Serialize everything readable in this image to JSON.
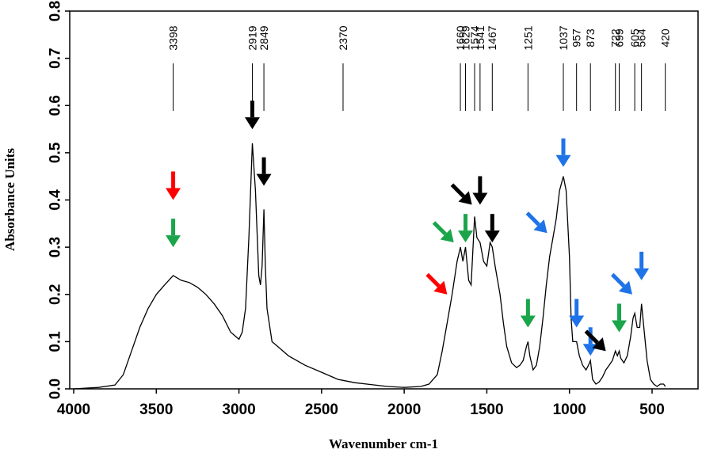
{
  "chart_data": {
    "type": "line",
    "xlabel": "Wavenumber cm-1",
    "ylabel": "Absorbance Units",
    "xlim": [
      4000,
      400
    ],
    "ylim": [
      0,
      0.8
    ],
    "x_ticks": [
      "4000",
      "3500",
      "3000",
      "2500",
      "2000",
      "1500",
      "1000",
      "500"
    ],
    "y_ticks": [
      "0.0",
      "0.1",
      "0.2",
      "0.3",
      "0.4",
      "0.5",
      "0.6",
      "0.7",
      "0.8"
    ],
    "grid": false,
    "series": [
      {
        "x": [
          4000,
          3850,
          3750,
          3700,
          3650,
          3600,
          3550,
          3500,
          3450,
          3398,
          3350,
          3300,
          3250,
          3200,
          3150,
          3100,
          3050,
          3000,
          2980,
          2960,
          2940,
          2919,
          2900,
          2880,
          2870,
          2860,
          2849,
          2840,
          2830,
          2800,
          2750,
          2700,
          2600,
          2500,
          2400,
          2370,
          2300,
          2200,
          2100,
          2000,
          1900,
          1850,
          1800,
          1770,
          1740,
          1710,
          1680,
          1660,
          1645,
          1629,
          1610,
          1595,
          1574,
          1560,
          1541,
          1520,
          1500,
          1480,
          1467,
          1450,
          1420,
          1400,
          1380,
          1350,
          1320,
          1300,
          1280,
          1260,
          1251,
          1240,
          1220,
          1200,
          1180,
          1160,
          1140,
          1120,
          1100,
          1080,
          1060,
          1037,
          1020,
          1000,
          990,
          980,
          970,
          957,
          940,
          920,
          900,
          885,
          873,
          860,
          840,
          820,
          800,
          780,
          760,
          740,
          722,
          710,
          699,
          690,
          670,
          650,
          630,
          615,
          605,
          590,
          575,
          564,
          550,
          530,
          510,
          490,
          470,
          450,
          430,
          420
        ],
        "values": [
          0.0,
          0.003,
          0.008,
          0.03,
          0.08,
          0.13,
          0.17,
          0.2,
          0.22,
          0.24,
          0.23,
          0.225,
          0.215,
          0.2,
          0.18,
          0.155,
          0.12,
          0.105,
          0.12,
          0.17,
          0.32,
          0.52,
          0.42,
          0.24,
          0.22,
          0.26,
          0.38,
          0.26,
          0.17,
          0.1,
          0.085,
          0.07,
          0.05,
          0.035,
          0.02,
          0.018,
          0.013,
          0.009,
          0.005,
          0.003,
          0.005,
          0.01,
          0.03,
          0.08,
          0.14,
          0.2,
          0.27,
          0.3,
          0.27,
          0.3,
          0.23,
          0.22,
          0.365,
          0.32,
          0.31,
          0.27,
          0.26,
          0.31,
          0.3,
          0.26,
          0.2,
          0.14,
          0.09,
          0.055,
          0.045,
          0.05,
          0.06,
          0.09,
          0.1,
          0.07,
          0.04,
          0.05,
          0.09,
          0.15,
          0.22,
          0.28,
          0.32,
          0.36,
          0.42,
          0.45,
          0.42,
          0.28,
          0.15,
          0.1,
          0.1,
          0.1,
          0.07,
          0.05,
          0.04,
          0.05,
          0.06,
          0.02,
          0.01,
          0.015,
          0.025,
          0.04,
          0.05,
          0.06,
          0.08,
          0.07,
          0.08,
          0.065,
          0.055,
          0.07,
          0.11,
          0.15,
          0.16,
          0.13,
          0.13,
          0.18,
          0.13,
          0.06,
          0.02,
          0.01,
          0.005,
          0.01,
          0.01,
          0.005
        ]
      }
    ],
    "peak_labels": [
      "3398",
      "2919",
      "2849",
      "2370",
      "1660",
      "1629",
      "1574",
      "1541",
      "1467",
      "1251",
      "1037",
      "957",
      "873",
      "722",
      "699",
      "605",
      "564",
      "420"
    ],
    "peak_marker_x": [
      3398,
      2919,
      2849,
      2370,
      1660,
      1629,
      1574,
      1541,
      1467,
      1251,
      1037,
      957,
      873,
      722,
      699,
      605,
      564,
      420
    ],
    "peak_label_x": [
      3398,
      2919,
      2849,
      2370,
      1660,
      1629,
      1574,
      1541,
      1467,
      1251,
      1037,
      957,
      873,
      722,
      699,
      605,
      564,
      420
    ],
    "arrow_colors": {
      "red": "#ff0000",
      "green": "#1aa54a",
      "black": "#000000",
      "blue": "#1e73e8"
    },
    "arrows": [
      {
        "color": "red",
        "x": 3398,
        "y": 0.4,
        "dir": "down"
      },
      {
        "color": "green",
        "x": 3398,
        "y": 0.3,
        "dir": "down"
      },
      {
        "color": "black",
        "x": 2919,
        "y": 0.55,
        "dir": "down"
      },
      {
        "color": "black",
        "x": 2849,
        "y": 0.43,
        "dir": "down"
      },
      {
        "color": "red",
        "x": 1740,
        "y": 0.2,
        "dir": "down-right"
      },
      {
        "color": "green",
        "x": 1700,
        "y": 0.31,
        "dir": "down-right"
      },
      {
        "color": "green",
        "x": 1629,
        "y": 0.31,
        "dir": "down"
      },
      {
        "color": "black",
        "x": 1590,
        "y": 0.39,
        "dir": "down-right"
      },
      {
        "color": "black",
        "x": 1541,
        "y": 0.39,
        "dir": "down"
      },
      {
        "color": "black",
        "x": 1467,
        "y": 0.31,
        "dir": "down"
      },
      {
        "color": "green",
        "x": 1251,
        "y": 0.13,
        "dir": "down"
      },
      {
        "color": "blue",
        "x": 1135,
        "y": 0.33,
        "dir": "down-right"
      },
      {
        "color": "blue",
        "x": 1037,
        "y": 0.47,
        "dir": "down"
      },
      {
        "color": "blue",
        "x": 957,
        "y": 0.13,
        "dir": "down"
      },
      {
        "color": "blue",
        "x": 873,
        "y": 0.07,
        "dir": "down"
      },
      {
        "color": "black",
        "x": 780,
        "y": 0.08,
        "dir": "down-right"
      },
      {
        "color": "green",
        "x": 699,
        "y": 0.12,
        "dir": "down"
      },
      {
        "color": "blue",
        "x": 620,
        "y": 0.2,
        "dir": "down-right"
      },
      {
        "color": "blue",
        "x": 564,
        "y": 0.23,
        "dir": "down"
      }
    ]
  }
}
